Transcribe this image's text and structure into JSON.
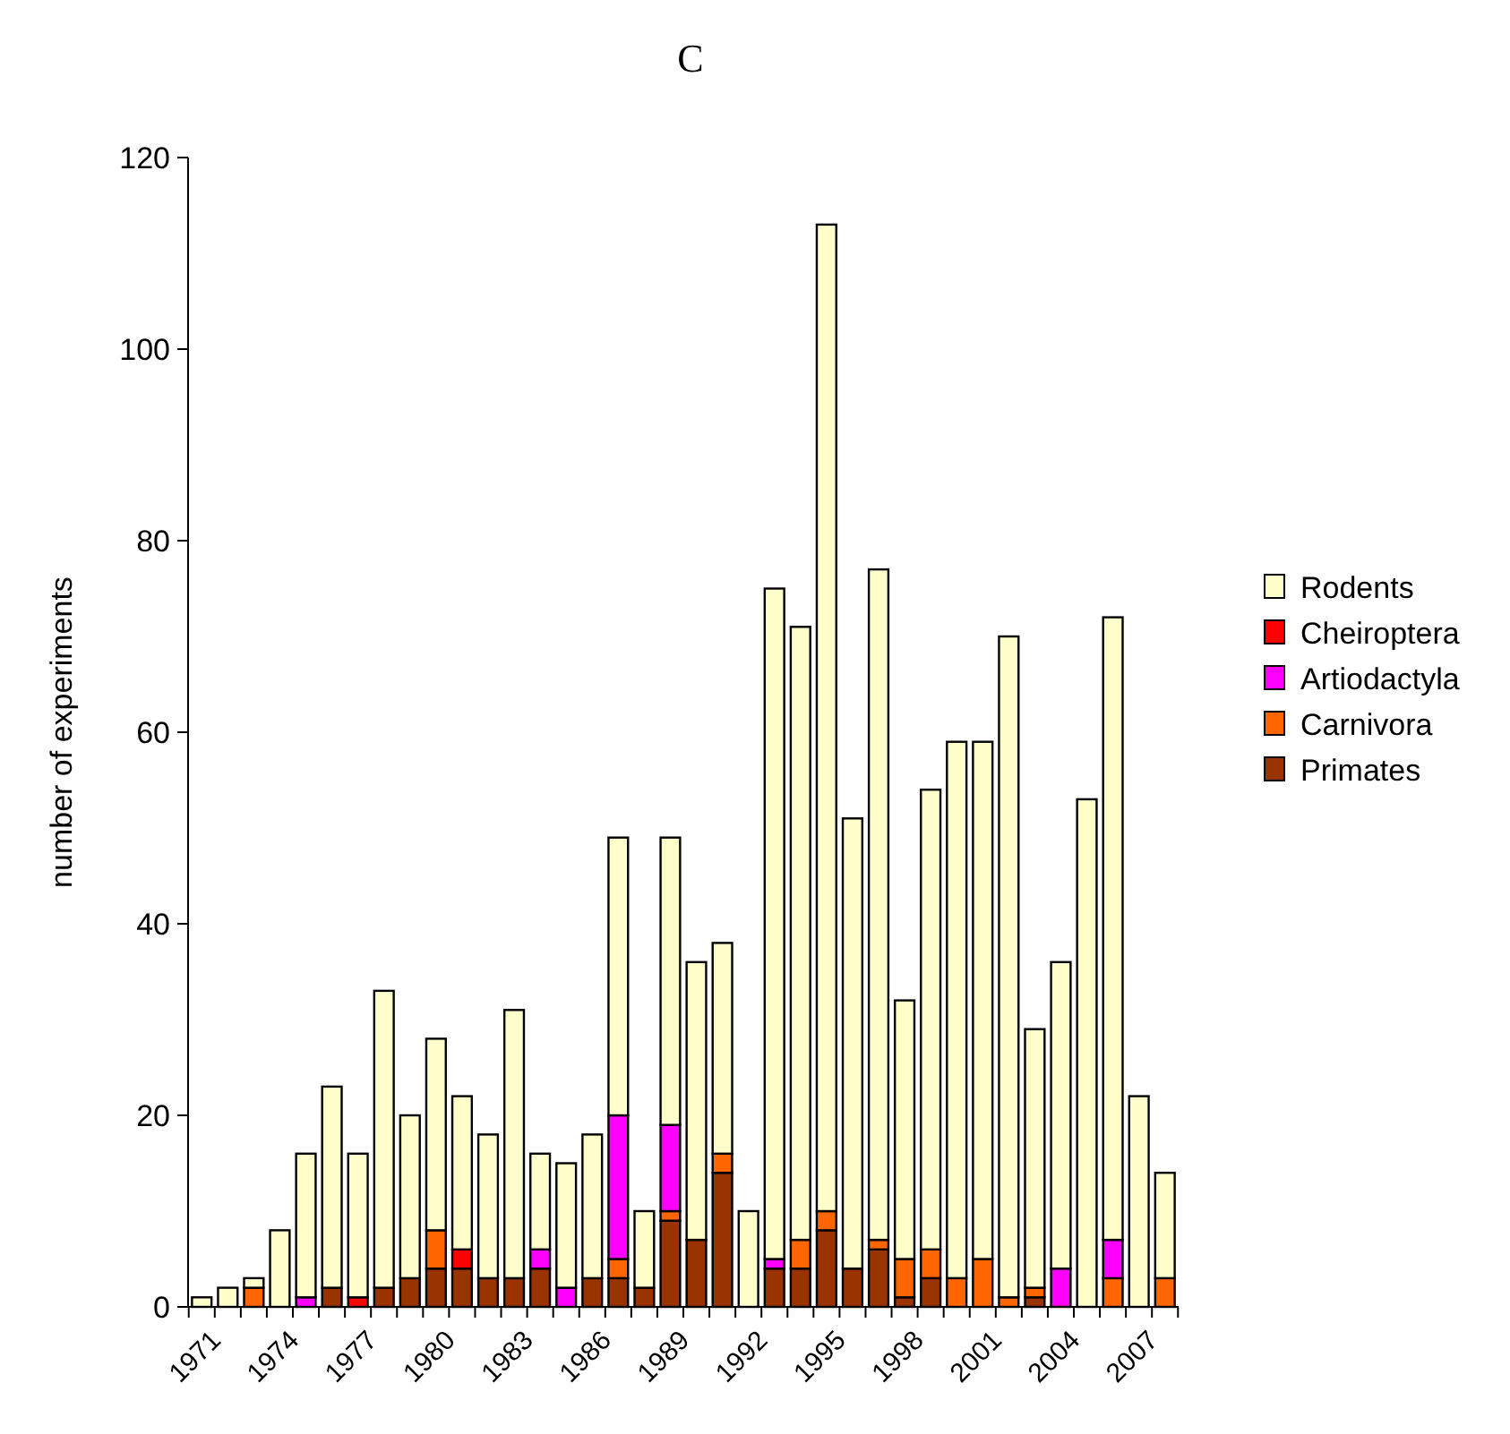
{
  "chart_data": {
    "type": "bar",
    "title": "C",
    "ylabel": "number of experiments",
    "stacked": true,
    "legend": "right",
    "categories": [
      "1971",
      null,
      null,
      "1974",
      null,
      null,
      "1977",
      null,
      null,
      "1980",
      null,
      null,
      "1983",
      null,
      null,
      "1986",
      null,
      null,
      "1989",
      null,
      null,
      "1992",
      null,
      null,
      "1995",
      null,
      null,
      "1998",
      null,
      null,
      "2001",
      null,
      null,
      "2004",
      null,
      null,
      "2007",
      null
    ],
    "ylim": [
      0,
      120
    ],
    "yticks": [
      0,
      20,
      40,
      60,
      80,
      100,
      120
    ],
    "series": [
      {
        "name": "Primates",
        "color": "#993300",
        "values": [
          0,
          0,
          0,
          0,
          0,
          2,
          0,
          2,
          3,
          4,
          4,
          3,
          3,
          4,
          0,
          3,
          3,
          2,
          9,
          7,
          14,
          0,
          4,
          4,
          8,
          4,
          6,
          1,
          3,
          0,
          0,
          0,
          1,
          0,
          0,
          0,
          0,
          0
        ]
      },
      {
        "name": "Carnivora",
        "color": "#ff6600",
        "values": [
          0,
          0,
          2,
          0,
          0,
          0,
          0,
          0,
          0,
          4,
          0,
          0,
          0,
          0,
          0,
          0,
          2,
          0,
          1,
          0,
          2,
          0,
          0,
          3,
          2,
          0,
          1,
          4,
          3,
          3,
          5,
          1,
          1,
          0,
          0,
          3,
          0,
          3
        ]
      },
      {
        "name": "Artiodactyla",
        "color": "#ff00ff",
        "values": [
          0,
          0,
          0,
          0,
          1,
          0,
          0,
          0,
          0,
          0,
          0,
          0,
          0,
          2,
          2,
          0,
          15,
          0,
          9,
          0,
          0,
          0,
          1,
          0,
          0,
          0,
          0,
          0,
          0,
          0,
          0,
          0,
          0,
          4,
          0,
          4,
          0,
          0
        ]
      },
      {
        "name": "Cheiroptera",
        "color": "#ff0000",
        "values": [
          0,
          0,
          0,
          0,
          0,
          0,
          1,
          0,
          0,
          0,
          2,
          0,
          0,
          0,
          0,
          0,
          0,
          0,
          0,
          0,
          0,
          0,
          0,
          0,
          0,
          0,
          0,
          0,
          0,
          0,
          0,
          0,
          0,
          0,
          0,
          0,
          0,
          0
        ]
      },
      {
        "name": "Rodents",
        "color": "#ffffcc",
        "values": [
          1,
          2,
          1,
          8,
          15,
          21,
          15,
          31,
          17,
          20,
          16,
          15,
          28,
          10,
          13,
          15,
          29,
          8,
          30,
          29,
          22,
          10,
          70,
          64,
          103,
          47,
          70,
          27,
          48,
          56,
          54,
          69,
          27,
          32,
          53,
          65,
          22,
          11
        ]
      }
    ]
  }
}
